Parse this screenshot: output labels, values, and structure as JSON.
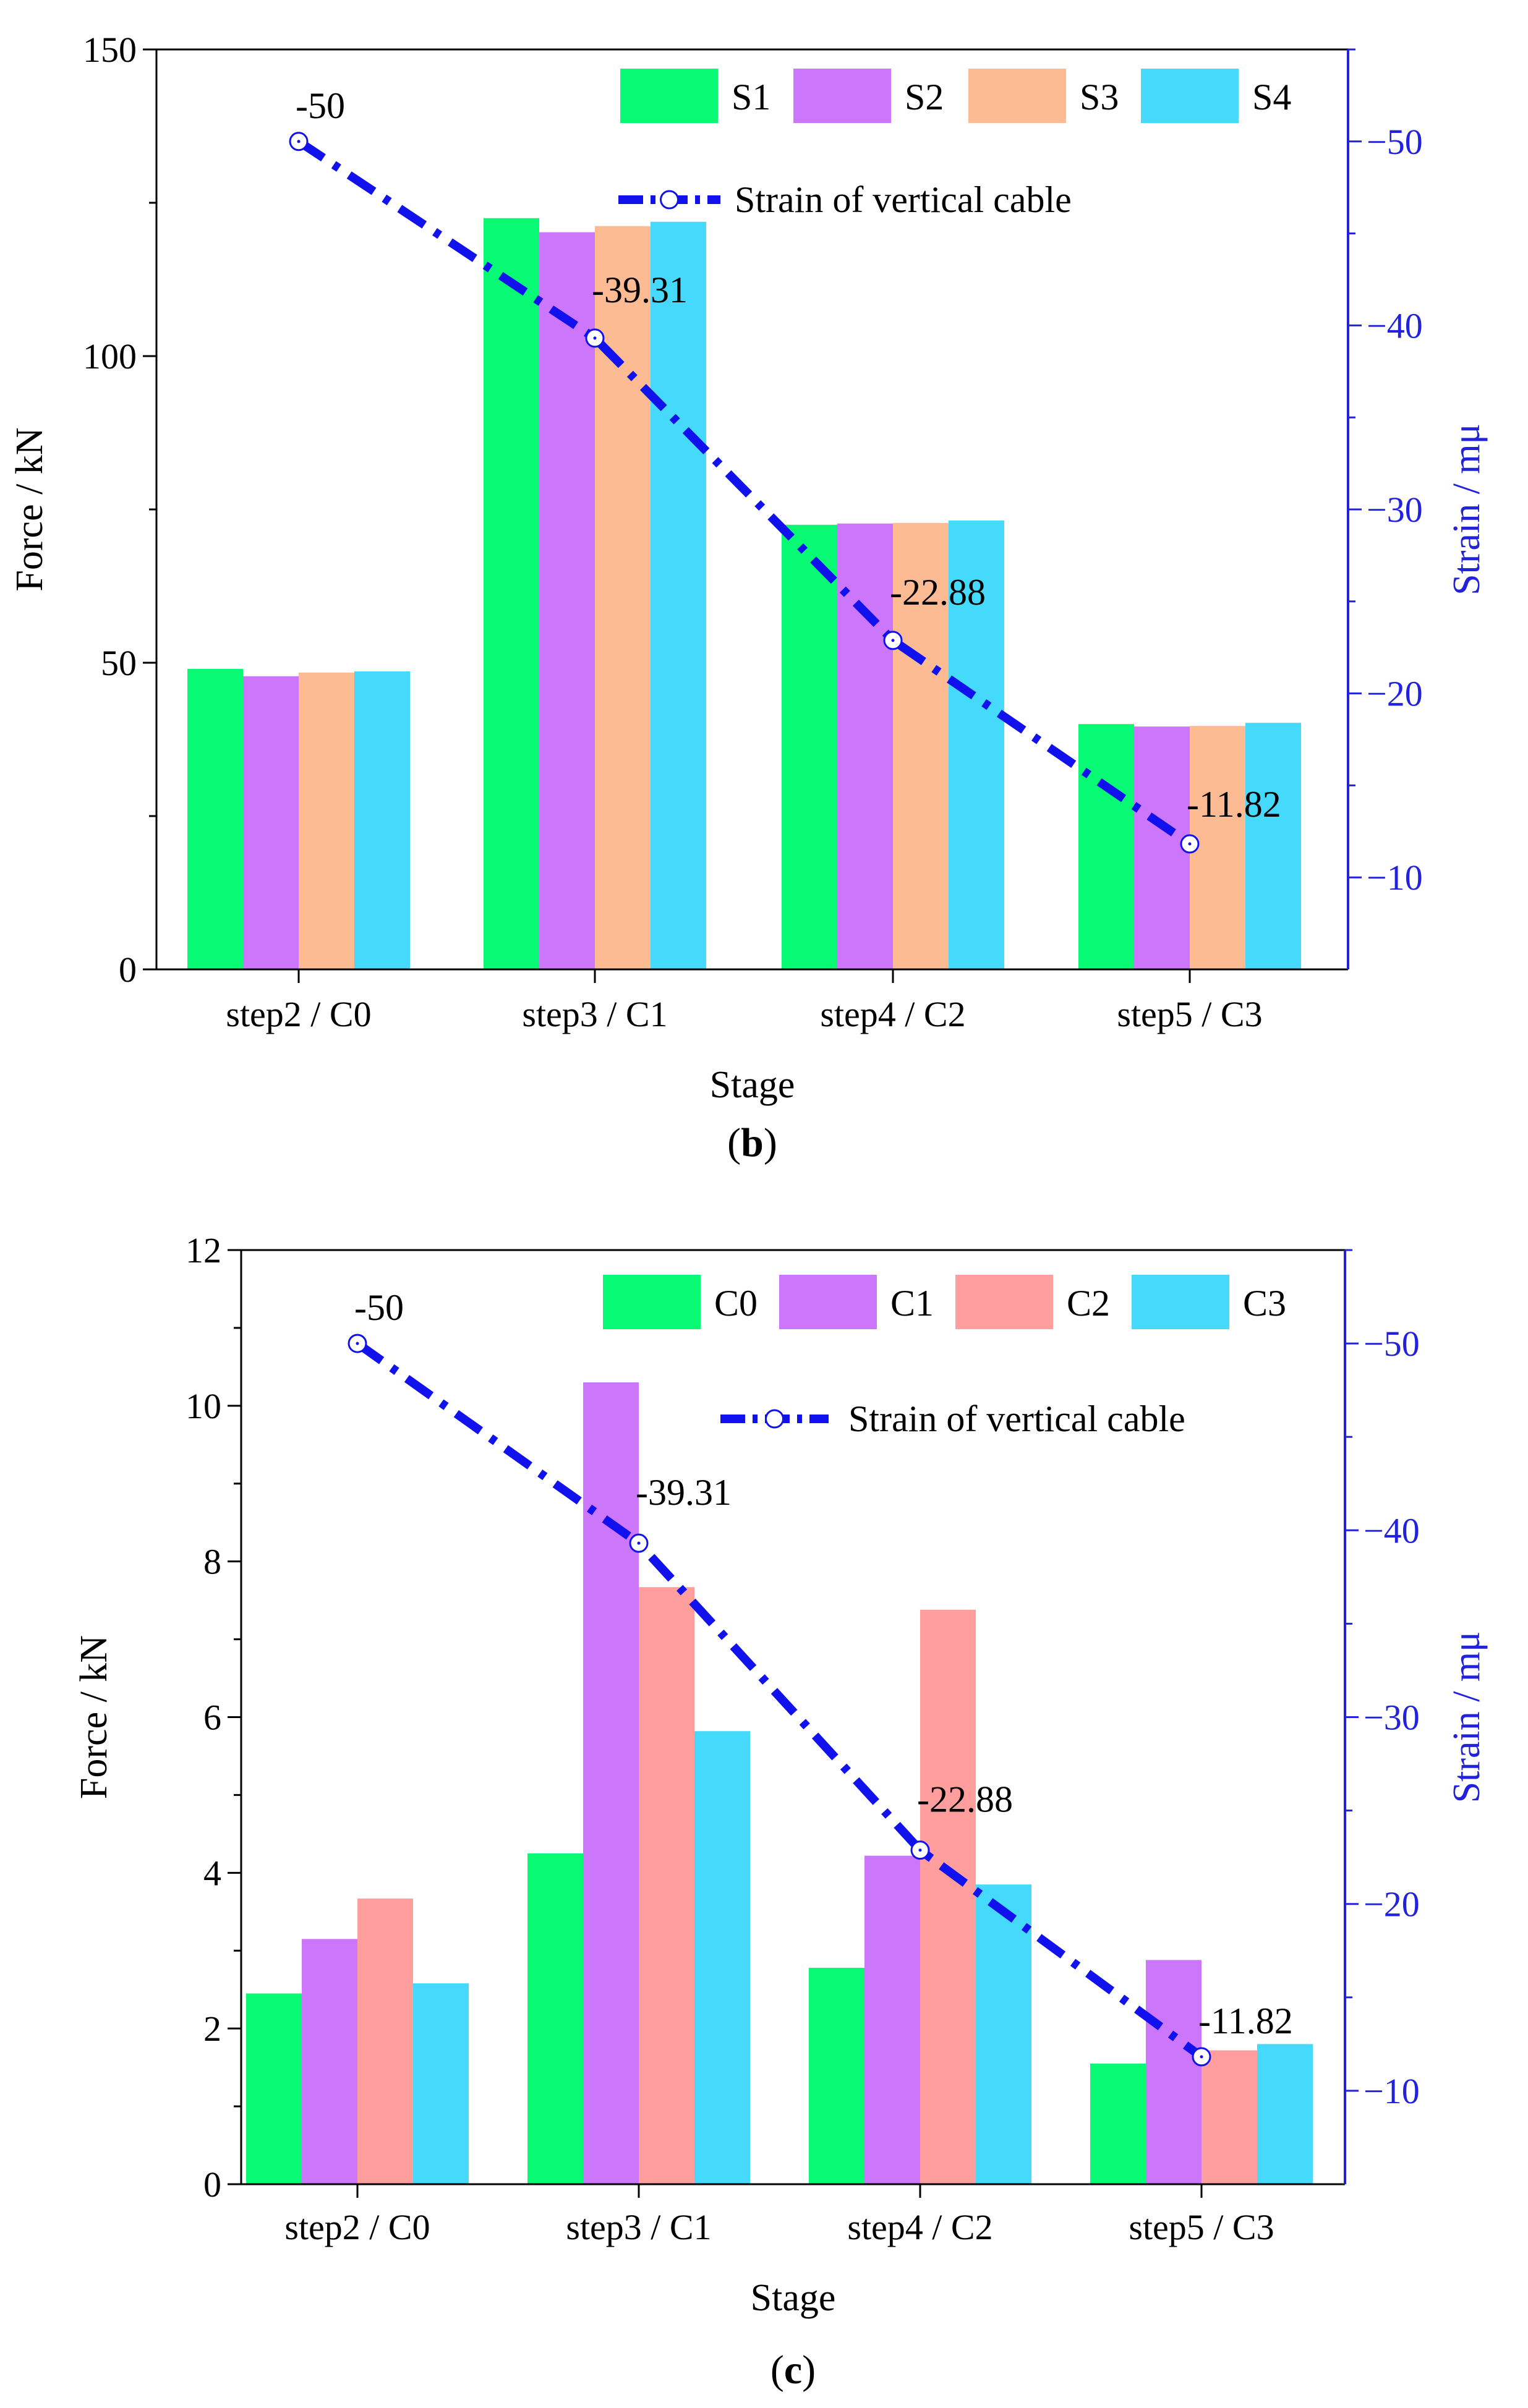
{
  "colors": {
    "green": "#08F974",
    "violet": "#CC76FB",
    "orange": "#FDBB94",
    "pink": "#FF9E9C",
    "cyan": "#45D9FB",
    "line": "#1111EE",
    "right_axis": "#2222DD"
  },
  "chart_data": [
    {
      "type": "bar",
      "panel_label_prefix": "(",
      "panel_label_letter": "b",
      "panel_label_suffix": ")",
      "categories": [
        "step2 / C0",
        "step3 / C1",
        "step4 / C2",
        "step5 / C3"
      ],
      "series": [
        {
          "name": "S1",
          "values": [
            49,
            122.5,
            72.5,
            40
          ],
          "color_key": "green"
        },
        {
          "name": "S2",
          "values": [
            47.8,
            120.2,
            72.7,
            39.6
          ],
          "color_key": "violet"
        },
        {
          "name": "S3",
          "values": [
            48.4,
            121.2,
            72.8,
            39.7
          ],
          "color_key": "orange"
        },
        {
          "name": "S4",
          "values": [
            48.6,
            121.9,
            73.2,
            40.2
          ],
          "color_key": "cyan"
        }
      ],
      "line_series": {
        "name": "Strain of vertical cable",
        "values": [
          -50,
          -39.31,
          -22.88,
          -11.82
        ],
        "labels": [
          "-50",
          "-39.31",
          "-22.88",
          "-11.82"
        ],
        "color_key": "line"
      },
      "xlabel": "Stage",
      "ylabel": "Force / kN",
      "ylim": [
        0,
        150
      ],
      "yticks": [
        0,
        50,
        100,
        150
      ],
      "ytick_labels": [
        "0",
        "50",
        "100",
        "150"
      ],
      "y2label": "Strain / mμ",
      "y2lim": [
        -5,
        -55
      ],
      "y2ticks": [
        -10,
        -20,
        -30,
        -40,
        -50
      ],
      "y2tick_labels": [
        "−10",
        "−20",
        "−30",
        "−40",
        "−50"
      ],
      "legend_position": "top-right"
    },
    {
      "type": "bar",
      "panel_label_prefix": "(",
      "panel_label_letter": "c",
      "panel_label_suffix": ")",
      "categories": [
        "step2 / C0",
        "step3 / C1",
        "step4 / C2",
        "step5 / C3"
      ],
      "series": [
        {
          "name": "C0",
          "values": [
            2.45,
            4.25,
            2.78,
            1.55
          ],
          "color_key": "green"
        },
        {
          "name": "C1",
          "values": [
            3.15,
            10.3,
            4.22,
            2.88
          ],
          "color_key": "violet"
        },
        {
          "name": "C2",
          "values": [
            3.67,
            7.67,
            7.38,
            1.72
          ],
          "color_key": "pink"
        },
        {
          "name": "C3",
          "values": [
            2.58,
            5.82,
            3.85,
            1.8
          ],
          "color_key": "cyan"
        }
      ],
      "line_series": {
        "name": "Strain of vertical cable",
        "values": [
          -50,
          -39.31,
          -22.88,
          -11.82
        ],
        "labels": [
          "-50",
          "-39.31",
          "-22.88",
          "-11.82"
        ],
        "color_key": "line"
      },
      "xlabel": "Stage",
      "ylabel": "Force / kN",
      "ylim": [
        0,
        12
      ],
      "yticks": [
        0,
        2,
        4,
        6,
        8,
        10,
        12
      ],
      "ytick_labels": [
        "0",
        "2",
        "4",
        "6",
        "8",
        "10",
        "12"
      ],
      "y2label": "Strain / mμ",
      "y2lim": [
        -5,
        -55
      ],
      "y2ticks": [
        -10,
        -20,
        -30,
        -40,
        -50
      ],
      "y2tick_labels": [
        "−10",
        "−20",
        "−30",
        "−40",
        "−50"
      ],
      "legend_position": "top-right"
    }
  ]
}
